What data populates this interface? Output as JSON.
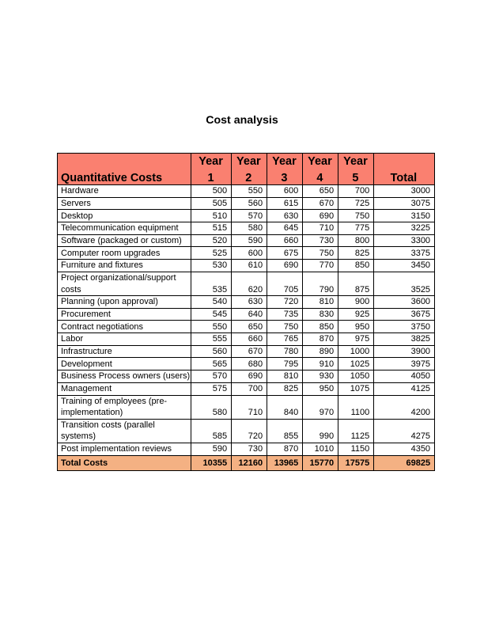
{
  "page": {
    "title": "Cost analysis"
  },
  "colors": {
    "header_bg": "#fa8070",
    "total_bg": "#f4b183",
    "border": "#000000",
    "text": "#000000"
  },
  "chart_data": {
    "type": "table",
    "title": "Cost analysis",
    "header": {
      "label": "Quantitative Costs",
      "years": [
        "Year\n1",
        "Year\n2",
        "Year\n3",
        "Year\n4",
        "Year\n5"
      ],
      "total": "Total"
    },
    "rows": [
      {
        "label": "Hardware",
        "values": [
          "500",
          "550",
          "600",
          "650",
          "700",
          "3000"
        ]
      },
      {
        "label": "Servers",
        "values": [
          "505",
          "560",
          "615",
          "670",
          "725",
          "3075"
        ]
      },
      {
        "label": "Desktop",
        "values": [
          "510",
          "570",
          "630",
          "690",
          "750",
          "3150"
        ]
      },
      {
        "label": "Telecommunication equipment",
        "values": [
          "515",
          "580",
          "645",
          "710",
          "775",
          "3225"
        ]
      },
      {
        "label": "Software (packaged or custom)",
        "values": [
          "520",
          "590",
          "660",
          "730",
          "800",
          "3300"
        ]
      },
      {
        "label": "Computer room upgrades",
        "values": [
          "525",
          "600",
          "675",
          "750",
          "825",
          "3375"
        ]
      },
      {
        "label": "Furniture and fixtures",
        "values": [
          "530",
          "610",
          "690",
          "770",
          "850",
          "3450"
        ]
      },
      {
        "label": "Project organizational/support\ncosts",
        "values": [
          "535",
          "620",
          "705",
          "790",
          "875",
          "3525"
        ]
      },
      {
        "label": "Planning (upon approval)",
        "values": [
          "540",
          "630",
          "720",
          "810",
          "900",
          "3600"
        ]
      },
      {
        "label": "Procurement",
        "values": [
          "545",
          "640",
          "735",
          "830",
          "925",
          "3675"
        ]
      },
      {
        "label": "Contract negotiations",
        "values": [
          "550",
          "650",
          "750",
          "850",
          "950",
          "3750"
        ]
      },
      {
        "label": "Labor",
        "values": [
          "555",
          "660",
          "765",
          "870",
          "975",
          "3825"
        ]
      },
      {
        "label": "Infrastructure",
        "values": [
          "560",
          "670",
          "780",
          "890",
          "1000",
          "3900"
        ]
      },
      {
        "label": "Development",
        "values": [
          "565",
          "680",
          "795",
          "910",
          "1025",
          "3975"
        ]
      },
      {
        "label": "Business Process owners (users)",
        "values": [
          "570",
          "690",
          "810",
          "930",
          "1050",
          "4050"
        ]
      },
      {
        "label": "Management",
        "values": [
          "575",
          "700",
          "825",
          "950",
          "1075",
          "4125"
        ]
      },
      {
        "label": "Training of employees (pre-\nimplementation)",
        "values": [
          "580",
          "710",
          "840",
          "970",
          "1100",
          "4200"
        ]
      },
      {
        "label": "Transition costs (parallel\nsystems)",
        "values": [
          "585",
          "720",
          "855",
          "990",
          "1125",
          "4275"
        ]
      },
      {
        "label": "Post implementation reviews",
        "values": [
          "590",
          "730",
          "870",
          "1010",
          "1150",
          "4350"
        ]
      }
    ],
    "total_row": {
      "label": "Total Costs",
      "values": [
        "10355",
        "12160",
        "13965",
        "15770",
        "17575",
        "69825"
      ]
    }
  }
}
